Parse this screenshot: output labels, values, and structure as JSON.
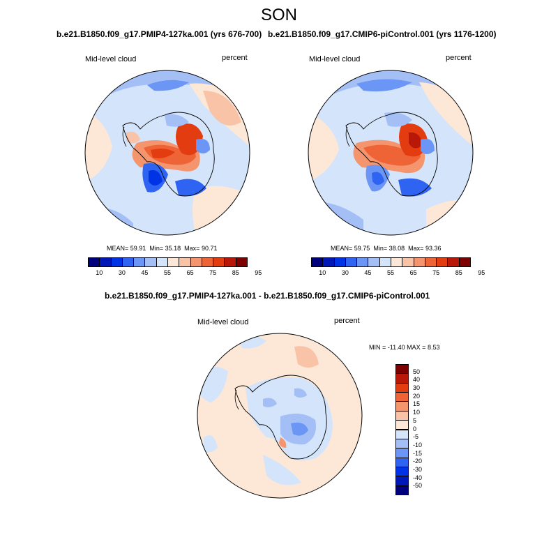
{
  "figure": {
    "season": "SON"
  },
  "panels": [
    {
      "title": "b.e21.B1850.f09_g17.PMIP4-127ka.001 (yrs 676-700)",
      "left_label": "Mid-level cloud",
      "right_label": "percent",
      "stats": {
        "mean_label": "MEAN=",
        "mean": "59.91",
        "min_label": "Min=",
        "min": "35.18",
        "max_label": "Max=",
        "max": "90.71"
      }
    },
    {
      "title": "b.e21.B1850.f09_g17.CMIP6-piControl.001 (yrs 1176-1200)",
      "left_label": "Mid-level cloud",
      "right_label": "percent",
      "stats": {
        "mean_label": "MEAN=",
        "mean": "59.75",
        "min_label": "Min=",
        "min": "38.08",
        "max_label": "Max=",
        "max": "93.36"
      }
    }
  ],
  "abs_colorbar": {
    "colors": [
      "#00007f",
      "#0018b8",
      "#0033e6",
      "#2f63f2",
      "#6b96f5",
      "#a3bff5",
      "#d4e4fa",
      "#fde8d8",
      "#f9c3a8",
      "#f4956e",
      "#ee6437",
      "#e23c10",
      "#b91707",
      "#7d0000"
    ],
    "ticks": [
      "10",
      "30",
      "45",
      "55",
      "65",
      "75",
      "85",
      "95"
    ]
  },
  "diff_panel": {
    "title": "b.e21.B1850.f09_g17.PMIP4-127ka.001 - b.e21.B1850.f09_g17.CMIP6-piControl.001",
    "left_label": "Mid-level cloud",
    "right_label": "percent",
    "minmax": {
      "min_label": "MIN =",
      "min": "-11.40",
      "max_label": "MAX =",
      "max": "8.53"
    }
  },
  "diff_colorbar": {
    "colors": [
      "#7d0000",
      "#b91707",
      "#e23c10",
      "#ee6437",
      "#f4956e",
      "#f9c3a8",
      "#fde8d8",
      "#d4e4fa",
      "#a3bff5",
      "#6b96f5",
      "#2f63f2",
      "#0033e6",
      "#0018b8",
      "#00007f"
    ],
    "ticks": [
      "50",
      "40",
      "30",
      "20",
      "15",
      "10",
      "5",
      "0",
      "-5",
      "-10",
      "-15",
      "-20",
      "-30",
      "-40",
      "-50"
    ]
  }
}
